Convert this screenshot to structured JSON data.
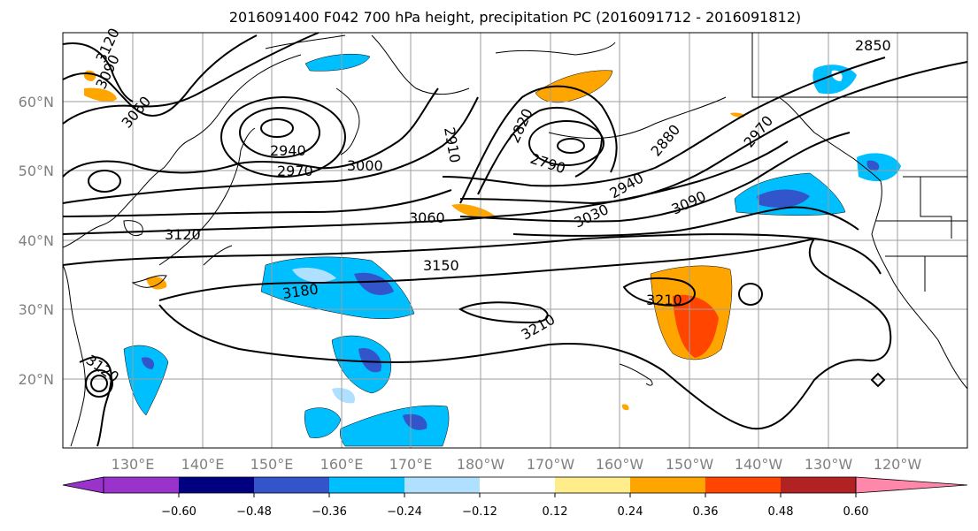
{
  "title": "2016091400 F042 700 hPa height, precipitation PC (2016091712 - 2016091812)",
  "lat_ticks": [
    "60°N",
    "50°N",
    "40°N",
    "30°N",
    "20°N"
  ],
  "lon_ticks": [
    "130°E",
    "140°E",
    "150°E",
    "160°E",
    "170°E",
    "180°W",
    "170°W",
    "160°W",
    "150°W",
    "140°W",
    "130°W",
    "120°W"
  ],
  "contour_labels": [
    "3120",
    "3090",
    "3060",
    "2940",
    "2970",
    "3000",
    "2910",
    "2820",
    "2790",
    "2880",
    "2850",
    "2970",
    "2940",
    "3030",
    "3060",
    "3090",
    "3120",
    "3150",
    "3180",
    "3210",
    "3210",
    "3120"
  ],
  "colorbar": {
    "ticks": [
      "−0.60",
      "−0.48",
      "−0.36",
      "−0.24",
      "−0.12",
      "0.12",
      "0.24",
      "0.36",
      "0.48",
      "0.60"
    ],
    "colors": [
      "#9933cc",
      "#000080",
      "#3355cc",
      "#00bfff",
      "#b0e0ff",
      "#ffffff",
      "#ffec8b",
      "#ffa500",
      "#ff4500",
      "#b22222",
      "#ff88aa"
    ]
  },
  "chart_data": {
    "type": "heatmap",
    "projection": "cylindrical",
    "lon_range_deg": [
      120,
      250
    ],
    "lat_range_deg": [
      10,
      70
    ],
    "field": "precipitation PC",
    "contour_field": "700 hPa height",
    "colorbar_bounds": [
      -0.6,
      -0.48,
      -0.36,
      -0.24,
      -0.12,
      0.12,
      0.24,
      0.36,
      0.48,
      0.6
    ]
  }
}
